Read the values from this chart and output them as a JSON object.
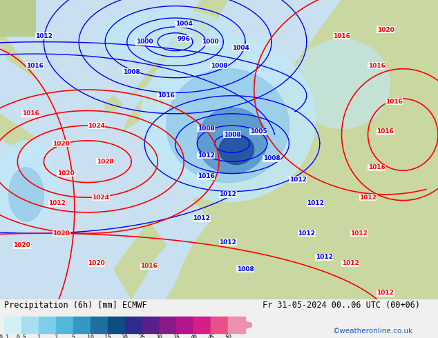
{
  "title_left": "Precipitation (6h) [mm] ECMWF",
  "title_right": "Fr 31-05-2024 00..06 UTC (00+06)",
  "credit": "©weatheronline.co.uk",
  "colorbar_levels": [
    "0.1",
    "0.5",
    "1",
    "2",
    "5",
    "10",
    "15",
    "20",
    "25",
    "30",
    "35",
    "40",
    "45",
    "50"
  ],
  "colorbar_colors": [
    "#d4f0f7",
    "#a8dff0",
    "#7dcfe8",
    "#52b8d8",
    "#3399c0",
    "#1e70a0",
    "#0d4d80",
    "#2d2d8f",
    "#5a1f8a",
    "#8b1a8b",
    "#b5148b",
    "#d41f8a",
    "#e8508a",
    "#f090b0"
  ],
  "bg_color": "#f0f0f0",
  "land_color": "#c8d8a0",
  "land_color2": "#b8cc90",
  "sea_color": "#c8e0f0",
  "prec_light": "#c0e8f8",
  "prec_mid": "#90c8e8",
  "prec_heavy": "#5090c8",
  "prec_vheavy": "#2050a0",
  "label_fontsize": 9,
  "credit_color": "#1565c0",
  "figure_width": 6.34,
  "figure_height": 4.9,
  "dpi": 100
}
